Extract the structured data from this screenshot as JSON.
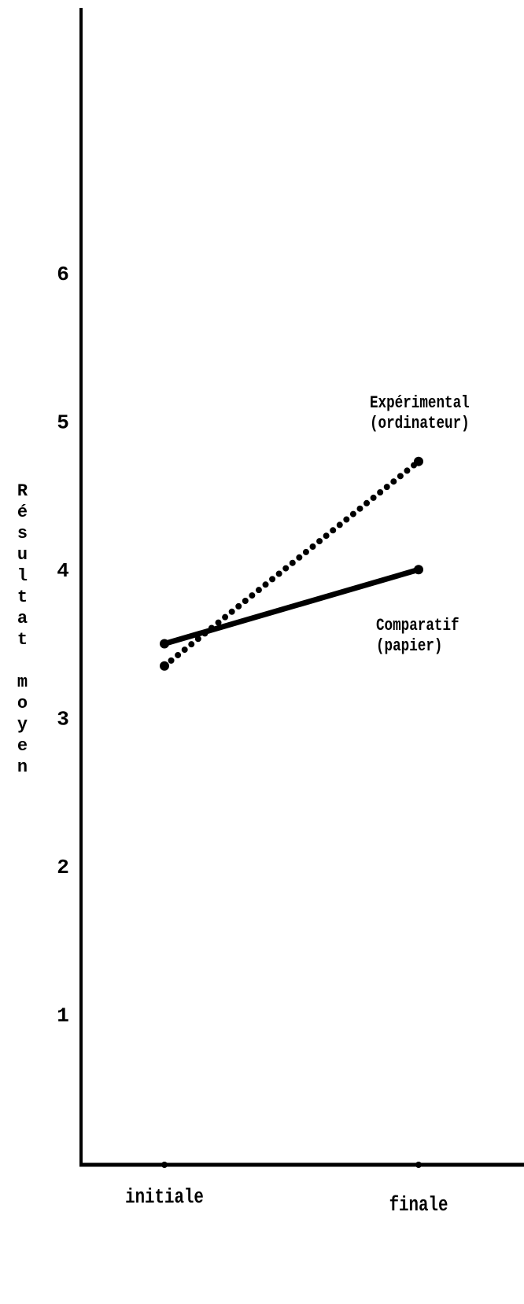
{
  "chart_data": {
    "type": "line",
    "y_label": "Résultat moyen",
    "categories": [
      "initiale",
      "finale"
    ],
    "series": [
      {
        "name": "Expérimental\n(ordinateur)",
        "color": "#000000",
        "line_style": "dotted",
        "values": [
          3.36,
          4.74
        ]
      },
      {
        "name": "Comparatif\n(papier)",
        "color": "#000000",
        "line_style": "solid",
        "values": [
          3.51,
          4.01
        ]
      }
    ],
    "ylim": [
      0,
      7.8
    ],
    "yticks": [
      1,
      2,
      3,
      4,
      5,
      6
    ],
    "grid": false
  }
}
